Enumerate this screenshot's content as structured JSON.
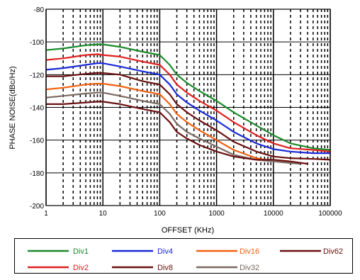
{
  "chart_data": {
    "type": "line",
    "title": "",
    "xlabel": "OFFSET (KHz)",
    "ylabel": "PHASE NOISE(dBc/Hz)",
    "xscale": "log",
    "xlim": [
      1,
      100000
    ],
    "ylim": [
      -200,
      -80
    ],
    "x_ticks": [
      1,
      10,
      100,
      1000,
      10000,
      100000
    ],
    "x_tick_labels": [
      "1",
      "10",
      "100",
      "1000",
      "10000",
      "100000"
    ],
    "y_ticks": [
      -200,
      -180,
      -160,
      -140,
      -120,
      -100,
      -80
    ],
    "y_tick_labels": [
      "-200",
      "-180",
      "-160",
      "-140",
      "-120",
      "-100",
      "-80"
    ],
    "grid": true,
    "legend_position": "below",
    "series": [
      {
        "name": "Div1",
        "color": "#1a8a2a",
        "points": [
          [
            1,
            -105
          ],
          [
            2,
            -104
          ],
          [
            5,
            -102
          ],
          [
            8,
            -101.5
          ],
          [
            10,
            -101.5
          ],
          [
            20,
            -103
          ],
          [
            50,
            -106
          ],
          [
            100,
            -108
          ],
          [
            150,
            -114
          ],
          [
            200,
            -120
          ],
          [
            300,
            -125
          ],
          [
            500,
            -130
          ],
          [
            1000,
            -136
          ],
          [
            2000,
            -143
          ],
          [
            5000,
            -151
          ],
          [
            10000,
            -157
          ],
          [
            20000,
            -162
          ],
          [
            50000,
            -165
          ],
          [
            100000,
            -166
          ]
        ]
      },
      {
        "name": "Div2",
        "color": "#e02020",
        "points": [
          [
            1,
            -111
          ],
          [
            2,
            -110
          ],
          [
            5,
            -108
          ],
          [
            8,
            -107.5
          ],
          [
            10,
            -108
          ],
          [
            20,
            -109
          ],
          [
            50,
            -112
          ],
          [
            100,
            -114
          ],
          [
            150,
            -120
          ],
          [
            200,
            -126
          ],
          [
            300,
            -131
          ],
          [
            500,
            -136
          ],
          [
            1000,
            -142
          ],
          [
            2000,
            -149
          ],
          [
            5000,
            -157
          ],
          [
            10000,
            -162
          ],
          [
            20000,
            -165
          ],
          [
            50000,
            -166
          ],
          [
            100000,
            -167
          ]
        ]
      },
      {
        "name": "Div4",
        "color": "#1a2ad8",
        "points": [
          [
            1,
            -117
          ],
          [
            2,
            -116
          ],
          [
            5,
            -114
          ],
          [
            8,
            -113
          ],
          [
            10,
            -113
          ],
          [
            20,
            -115
          ],
          [
            50,
            -118
          ],
          [
            100,
            -120
          ],
          [
            150,
            -126
          ],
          [
            200,
            -132
          ],
          [
            300,
            -137
          ],
          [
            500,
            -142
          ],
          [
            1000,
            -148
          ],
          [
            2000,
            -155
          ],
          [
            5000,
            -162
          ],
          [
            10000,
            -165.5
          ],
          [
            20000,
            -167
          ],
          [
            50000,
            -168
          ],
          [
            100000,
            -168
          ]
        ]
      },
      {
        "name": "Div8",
        "color": "#6a1010",
        "points": [
          [
            1,
            -121
          ],
          [
            2,
            -121
          ],
          [
            5,
            -119.5
          ],
          [
            8,
            -119
          ],
          [
            10,
            -119
          ],
          [
            20,
            -120
          ],
          [
            50,
            -124
          ],
          [
            100,
            -126
          ],
          [
            150,
            -132
          ],
          [
            200,
            -138
          ],
          [
            300,
            -143
          ],
          [
            500,
            -148
          ],
          [
            1000,
            -154
          ],
          [
            2000,
            -161
          ],
          [
            5000,
            -167
          ],
          [
            10000,
            -170
          ],
          [
            20000,
            -171
          ],
          [
            50000,
            -171.5
          ],
          [
            100000,
            -172
          ]
        ]
      },
      {
        "name": "Div16",
        "color": "#f06010",
        "points": [
          [
            1,
            -129
          ],
          [
            2,
            -128
          ],
          [
            5,
            -126
          ],
          [
            8,
            -125.5
          ],
          [
            10,
            -125.5
          ],
          [
            20,
            -127
          ],
          [
            50,
            -130
          ],
          [
            100,
            -132
          ],
          [
            150,
            -138
          ],
          [
            200,
            -144
          ],
          [
            300,
            -149
          ],
          [
            500,
            -154
          ],
          [
            1000,
            -160
          ],
          [
            2000,
            -166
          ],
          [
            5000,
            -171
          ],
          [
            10000,
            -173
          ],
          [
            20000,
            -173.5
          ],
          [
            30000,
            -174
          ]
        ]
      },
      {
        "name": "Div32",
        "color": "#7a6a62",
        "points": [
          [
            1,
            -134
          ],
          [
            2,
            -133
          ],
          [
            5,
            -131.5
          ],
          [
            8,
            -131
          ],
          [
            10,
            -131
          ],
          [
            20,
            -133
          ],
          [
            50,
            -136
          ],
          [
            100,
            -138
          ],
          [
            150,
            -144
          ],
          [
            200,
            -150
          ],
          [
            300,
            -155
          ],
          [
            500,
            -159
          ],
          [
            1000,
            -164
          ],
          [
            2000,
            -169
          ],
          [
            5000,
            -172
          ],
          [
            10000,
            -173
          ],
          [
            20000,
            -174
          ],
          [
            30000,
            -174.5
          ]
        ]
      },
      {
        "name": "Div62",
        "color": "#6a1010",
        "points": [
          [
            1,
            -138
          ],
          [
            2,
            -138
          ],
          [
            5,
            -137
          ],
          [
            8,
            -136.5
          ],
          [
            10,
            -136.5
          ],
          [
            20,
            -138
          ],
          [
            50,
            -141
          ],
          [
            100,
            -143
          ],
          [
            150,
            -149
          ],
          [
            200,
            -155
          ],
          [
            300,
            -159
          ],
          [
            500,
            -163
          ],
          [
            1000,
            -167
          ],
          [
            2000,
            -170
          ],
          [
            5000,
            -172
          ],
          [
            10000,
            -172
          ],
          [
            20000,
            -173
          ],
          [
            40000,
            -174.5
          ]
        ]
      }
    ]
  }
}
